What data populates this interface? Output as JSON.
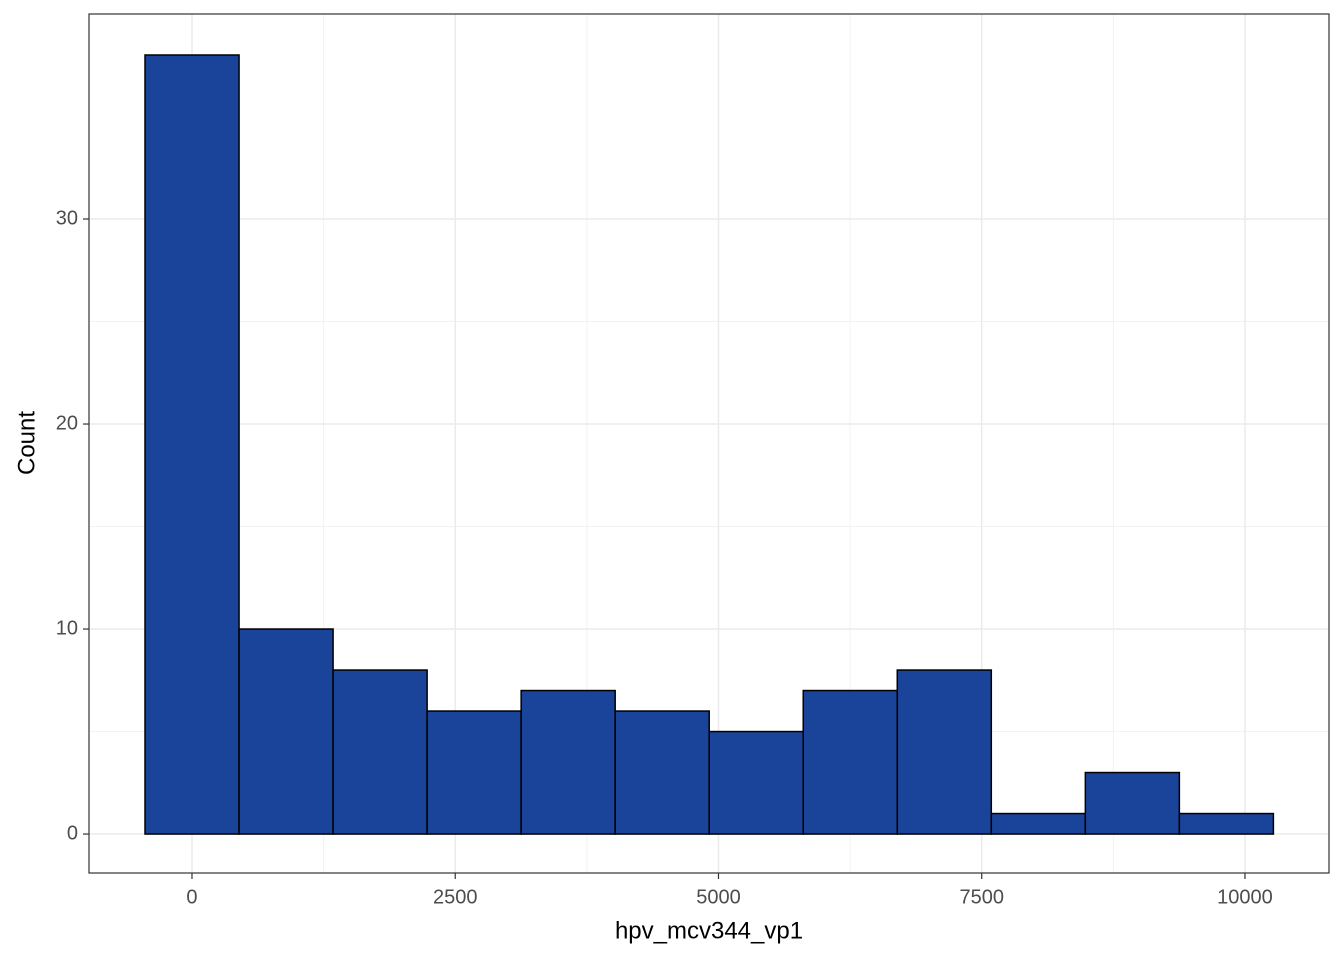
{
  "chart_data": {
    "type": "histogram",
    "x_label": "hpv_mcv344_vp1",
    "y_label": "Count",
    "bins": [
      -446,
      447,
      1340,
      2233,
      3126,
      4019,
      4912,
      5805,
      6698,
      7591,
      8484,
      9377,
      10270
    ],
    "values": [
      38,
      10,
      8,
      6,
      7,
      6,
      5,
      7,
      8,
      1,
      3,
      1
    ],
    "color": "#1a4499",
    "xlim": [
      -978,
      10798
    ],
    "xticks": [
      0,
      2500,
      5000,
      7500,
      10000
    ],
    "ylim": [
      -1.9,
      40
    ],
    "yticks": [
      0,
      10,
      20,
      30
    ],
    "grid": true
  }
}
